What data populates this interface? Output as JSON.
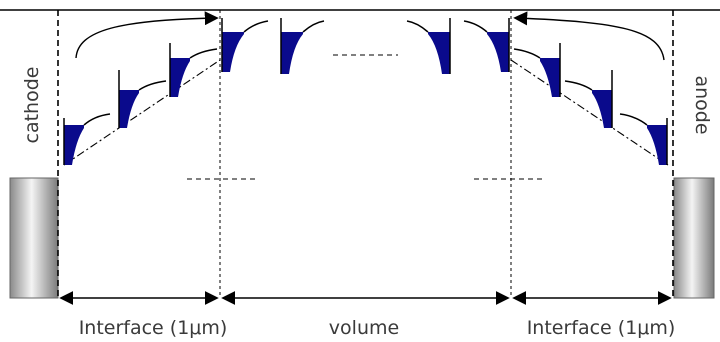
{
  "labels": {
    "cathode": "cathode",
    "anode": "anode",
    "interface_left": "Interface (1μm)",
    "volume": "volume",
    "interface_right": "Interface (1μm)"
  },
  "colors": {
    "well_fill": "#0a0a8c",
    "line": "#000000",
    "electrode_light": "#f2f2f2",
    "electrode_dark": "#8a8a8a"
  }
}
